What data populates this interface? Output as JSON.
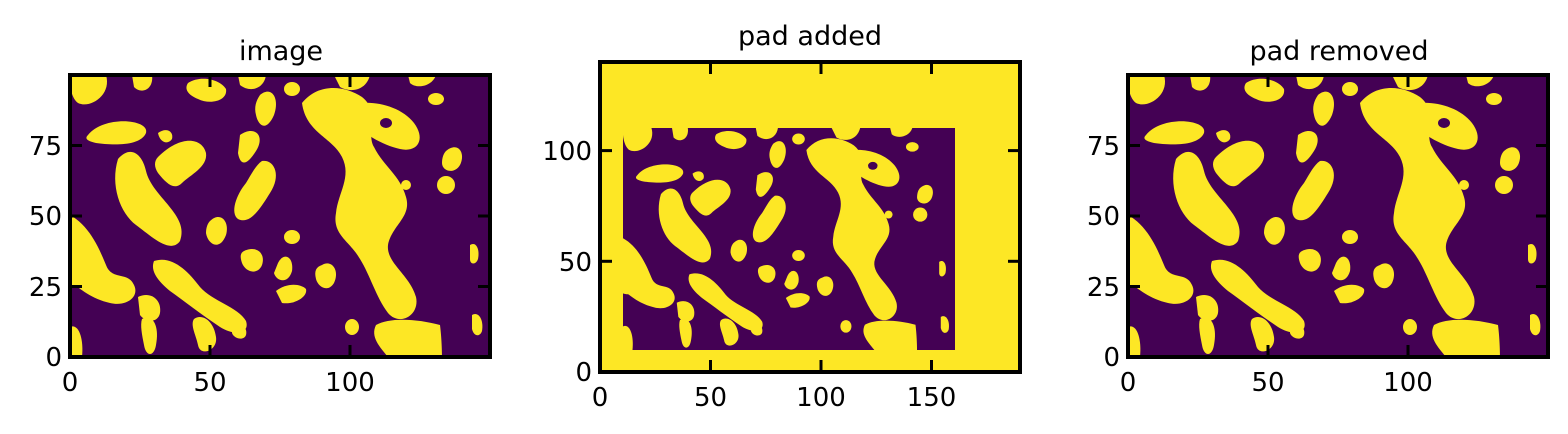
{
  "colors": {
    "background": "#440154",
    "foreground": "#fde725",
    "axes": "#000000"
  },
  "chart_data": [
    {
      "type": "heatmap",
      "title": "image",
      "xlim": [
        0,
        150
      ],
      "ylim": [
        0,
        100
      ],
      "xticks": [
        0,
        50,
        100
      ],
      "yticks": [
        0,
        25,
        50,
        75
      ],
      "grid": false,
      "pad": null
    },
    {
      "type": "heatmap",
      "title": "pad added",
      "xlim": [
        0,
        190
      ],
      "ylim": [
        0,
        140
      ],
      "xticks": [
        0,
        50,
        100,
        150
      ],
      "yticks": [
        0,
        50,
        100
      ],
      "grid": false,
      "pad": {
        "inner_x": [
          10,
          160
        ],
        "inner_y": [
          10,
          110
        ]
      }
    },
    {
      "type": "heatmap",
      "title": "pad removed",
      "xlim": [
        0,
        150
      ],
      "ylim": [
        0,
        100
      ],
      "xticks": [
        0,
        50,
        100
      ],
      "yticks": [
        0,
        25,
        50,
        75
      ],
      "grid": false,
      "pad": null
    }
  ]
}
